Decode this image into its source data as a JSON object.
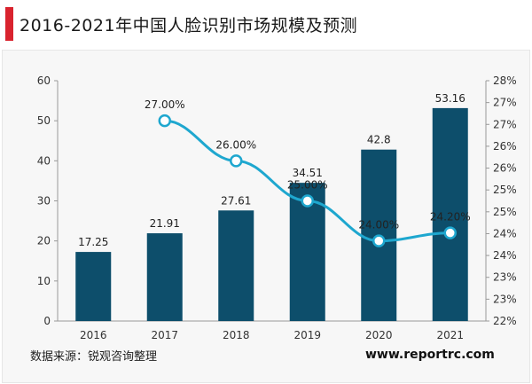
{
  "title": "2016-2021年中国人脸识别市场规模及预测",
  "source": "数据来源：锐观咨询整理",
  "website": "www.reportrc.com",
  "colors": {
    "bar": "#0d4e6b",
    "line": "#1ea7cf",
    "accent": "#d9232e"
  },
  "chart_data": {
    "type": "bar",
    "categories": [
      "2016",
      "2017",
      "2018",
      "2019",
      "2020",
      "2021"
    ],
    "series": [
      {
        "values": [
          17.25,
          21.91,
          27.61,
          34.51,
          42.8,
          53.16
        ],
        "labels": [
          "17.25",
          "21.91",
          "27.61",
          "34.51",
          "42.8",
          "53.16"
        ],
        "axis": "left",
        "kind": "bar"
      },
      {
        "values": [
          null,
          27.0,
          26.0,
          25.0,
          24.0,
          24.2
        ],
        "labels": [
          "",
          "27.00%",
          "26.00%",
          "25.00%",
          "24.00%",
          "24.20%"
        ],
        "axis": "right",
        "kind": "line"
      }
    ],
    "ylim": [
      0,
      60
    ],
    "yticks": [
      "0",
      "10",
      "20",
      "30",
      "40",
      "50",
      "60"
    ],
    "y2lim": [
      22,
      28
    ],
    "y2ticks": [
      "22%",
      "23%",
      "23%",
      "24%",
      "24%",
      "25%",
      "25%",
      "26%",
      "26%",
      "27%",
      "27%",
      "28%"
    ],
    "grid": false
  }
}
